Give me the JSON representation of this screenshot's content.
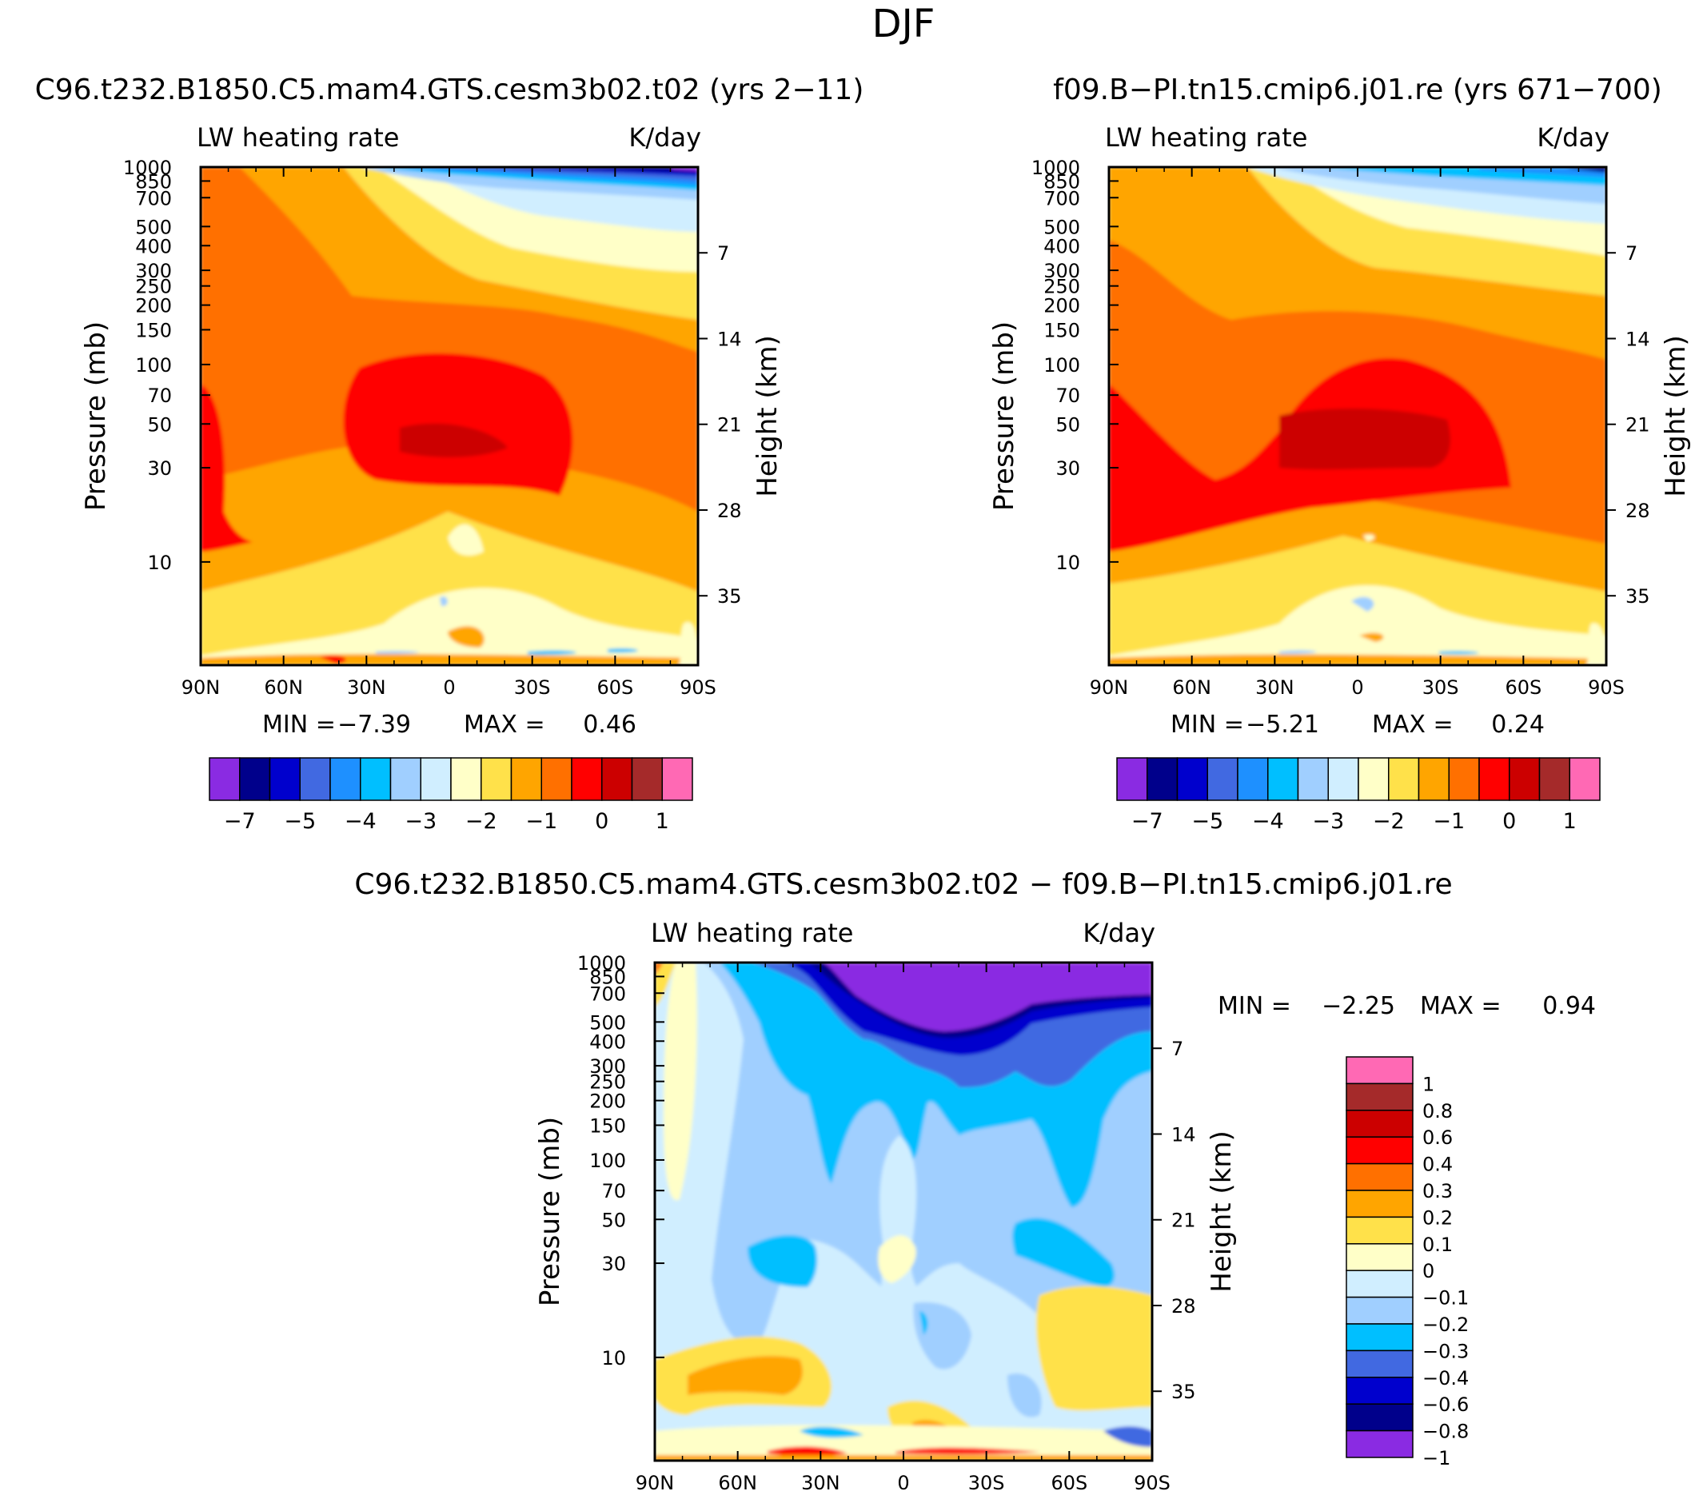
{
  "figure": {
    "title": "DJF"
  },
  "chart_data": [
    {
      "type": "heatmap",
      "panel": "left",
      "title": "C96.t232.B1850.C5.mam4.GTS.cesm3b02.t02 (yrs 2−11)",
      "subtitle_left": "LW heating rate",
      "subtitle_right": "K/day",
      "ylabel": "Pressure (mb)",
      "ylabel_right": "Height (km)",
      "x_ticks": [
        "90N",
        "60N",
        "30N",
        "0",
        "30S",
        "60S",
        "90S"
      ],
      "x_range": [
        90,
        -90
      ],
      "y_ticks": [
        "10",
        "30",
        "50",
        "70",
        "100",
        "150",
        "200",
        "250",
        "300",
        "400",
        "500",
        "700",
        "850",
        "1000"
      ],
      "y_scale": "log",
      "y_range": [
        1000,
        3
      ],
      "y_ticks_right": [
        "35",
        "28",
        "21",
        "14",
        "7"
      ],
      "min_label": "MIN =",
      "min_value": "−7.39",
      "max_label": "MAX =",
      "max_value": "0.46",
      "colorbar_orientation": "horizontal",
      "colorbar_labels": [
        "−7",
        "−5",
        "−4",
        "−3",
        "−2",
        "−1",
        "0",
        "1"
      ],
      "colors": [
        "#8A2BE2",
        "#00008B",
        "#0000CD",
        "#4169E1",
        "#1E90FF",
        "#00BFFF",
        "#A0CFFF",
        "#D0EEFF",
        "#FFFFC8",
        "#FFE14A",
        "#FFA500",
        "#FF7000",
        "#FF0000",
        "#CC0000",
        "#A52A2A",
        "#FF69B4"
      ]
    },
    {
      "type": "heatmap",
      "panel": "right",
      "title": "f09.B−PI.tn15.cmip6.j01.re (yrs 671−700)",
      "subtitle_left": "LW heating rate",
      "subtitle_right": "K/day",
      "ylabel": "Pressure (mb)",
      "ylabel_right": "Height (km)",
      "x_ticks": [
        "90N",
        "60N",
        "30N",
        "0",
        "30S",
        "60S",
        "90S"
      ],
      "x_range": [
        90,
        -90
      ],
      "y_ticks": [
        "10",
        "30",
        "50",
        "70",
        "100",
        "150",
        "200",
        "250",
        "300",
        "400",
        "500",
        "700",
        "850",
        "1000"
      ],
      "y_scale": "log",
      "y_range": [
        1000,
        3
      ],
      "y_ticks_right": [
        "35",
        "28",
        "21",
        "14",
        "7"
      ],
      "min_label": "MIN =",
      "min_value": "−5.21",
      "max_label": "MAX =",
      "max_value": "0.24",
      "colorbar_orientation": "horizontal",
      "colorbar_labels": [
        "−7",
        "−5",
        "−4",
        "−3",
        "−2",
        "−1",
        "0",
        "1"
      ],
      "colors": [
        "#8A2BE2",
        "#00008B",
        "#0000CD",
        "#4169E1",
        "#1E90FF",
        "#00BFFF",
        "#A0CFFF",
        "#D0EEFF",
        "#FFFFC8",
        "#FFE14A",
        "#FFA500",
        "#FF7000",
        "#FF0000",
        "#CC0000",
        "#A52A2A",
        "#FF69B4"
      ]
    },
    {
      "type": "heatmap",
      "panel": "bottom",
      "title": "C96.t232.B1850.C5.mam4.GTS.cesm3b02.t02 − f09.B−PI.tn15.cmip6.j01.re",
      "subtitle_left": "LW heating rate",
      "subtitle_right": "K/day",
      "ylabel": "Pressure (mb)",
      "ylabel_right": "Height (km)",
      "x_ticks": [
        "90N",
        "60N",
        "30N",
        "0",
        "30S",
        "60S",
        "90S"
      ],
      "x_range": [
        90,
        -90
      ],
      "y_ticks": [
        "10",
        "30",
        "50",
        "70",
        "100",
        "150",
        "200",
        "250",
        "300",
        "400",
        "500",
        "700",
        "850",
        "1000"
      ],
      "y_scale": "log",
      "y_range": [
        1000,
        3
      ],
      "y_ticks_right": [
        "35",
        "28",
        "21",
        "14",
        "7"
      ],
      "min_label": "MIN =",
      "min_value": "−2.25",
      "max_label": "MAX =",
      "max_value": "0.94",
      "colorbar_orientation": "vertical",
      "colorbar_labels": [
        "1",
        "0.8",
        "0.6",
        "0.4",
        "0.3",
        "0.2",
        "0.1",
        "0",
        "−0.1",
        "−0.2",
        "−0.3",
        "−0.4",
        "−0.6",
        "−0.8",
        "−1"
      ],
      "colors": [
        "#FF69B4",
        "#A52A2A",
        "#CC0000",
        "#FF0000",
        "#FF7000",
        "#FFA500",
        "#FFE14A",
        "#FFFFC8",
        "#D0EEFF",
        "#A0CFFF",
        "#00BFFF",
        "#4169E1",
        "#0000CD",
        "#00008B",
        "#8A2BE2"
      ]
    }
  ]
}
